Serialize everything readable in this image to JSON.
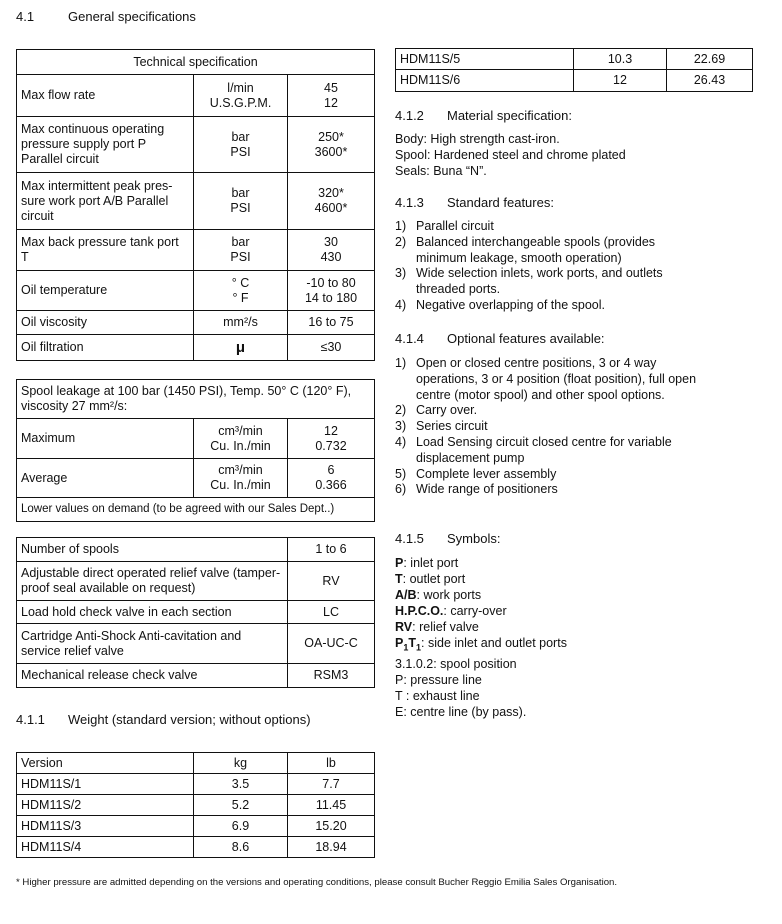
{
  "section": {
    "number": "4.1",
    "title": "General specifications"
  },
  "tech_spec": {
    "header": "Technical specification",
    "rows": [
      {
        "label": "Max flow rate",
        "unit1": "l/min",
        "unit2": "U.S.G.P.M.",
        "val1": "45",
        "val2": "12"
      },
      {
        "label": "Max continuous operating pressure supply port P Parallel circuit",
        "unit1": "bar",
        "unit2": "PSI",
        "val1": "250*",
        "val2": "3600*"
      },
      {
        "label": "Max intermittent peak pres-sure work port A/B Parallel circuit",
        "unit1": "bar",
        "unit2": "PSI",
        "val1": "320*",
        "val2": "4600*"
      },
      {
        "label": "Max back pressure tank port T",
        "unit1": "bar",
        "unit2": "PSI",
        "val1": "30",
        "val2": "430"
      },
      {
        "label": "Oil temperature",
        "unit1": "° C",
        "unit2": "° F",
        "val1": "-10 to 80",
        "val2": "14 to 180"
      },
      {
        "label": "Oil viscosity",
        "unit1": "mm²/s",
        "val1": "16 to 75"
      },
      {
        "label": "Oil filtration",
        "unit1": "μ",
        "val1": "≤30"
      }
    ]
  },
  "leakage": {
    "header": "Spool leakage at 100 bar (1450 PSI), Temp. 50° C (120° F), viscosity 27 mm²/s:",
    "rows": [
      {
        "label": "Maximum",
        "unit1": "cm³/min",
        "unit2": "Cu. In./min",
        "val1": "12",
        "val2": "0.732"
      },
      {
        "label": "Average",
        "unit1": "cm³/min",
        "unit2": "Cu. In./min",
        "val1": "6",
        "val2": "0.366"
      }
    ],
    "footer": "Lower values on demand (to be agreed with our Sales Dept..)"
  },
  "options_table": [
    {
      "label": "Number of spools",
      "code": "1 to 6"
    },
    {
      "label": "Adjustable direct operated relief valve (tamper-proof seal available on request)",
      "code": "RV"
    },
    {
      "label": "Load hold check valve in each section",
      "code": "LC"
    },
    {
      "label": "Cartridge Anti-Shock Anti-cavitation and service relief valve",
      "code": "OA-UC-C"
    },
    {
      "label": "Mechanical release check valve",
      "code": "RSM3"
    }
  ],
  "weight": {
    "number": "4.1.1",
    "title": "Weight (standard version; without options)",
    "headers": [
      "Version",
      "kg",
      "lb"
    ],
    "rows": [
      [
        "HDM11S/1",
        "3.5",
        "7.7"
      ],
      [
        "HDM11S/2",
        "5.2",
        "11.45"
      ],
      [
        "HDM11S/3",
        "6.9",
        "15.20"
      ],
      [
        "HDM11S/4",
        "8.6",
        "18.94"
      ],
      [
        "HDM11S/5",
        "10.3",
        "22.69"
      ],
      [
        "HDM11S/6",
        "12",
        "26.43"
      ]
    ]
  },
  "material": {
    "number": "4.1.2",
    "title": "Material specification:",
    "lines": [
      "Body: High strength cast-iron.",
      "Spool: Hardened steel and chrome plated",
      "Seals: Buna “N”."
    ]
  },
  "standard": {
    "number": "4.1.3",
    "title": "Standard features:",
    "items": [
      {
        "n": "1)",
        "t": "Parallel circuit"
      },
      {
        "n": "2)",
        "t": "Balanced interchangeable spools (provides minimum leakage, smooth operation)"
      },
      {
        "n": "3)",
        "t": "Wide selection inlets, work ports, and outlets threaded ports."
      },
      {
        "n": "4)",
        "t": "Negative overlapping of the spool."
      }
    ]
  },
  "optional": {
    "number": "4.1.4",
    "title": "Optional features available:",
    "items": [
      {
        "n": "1)",
        "t": "Open or closed centre positions, 3 or 4 way operations, 3 or 4 position (float position), full open centre (motor spool) and other spool options."
      },
      {
        "n": "2)",
        "t": "Carry over."
      },
      {
        "n": "3)",
        "t": "Series circuit"
      },
      {
        "n": "4)",
        "t": "Load Sensing circuit closed centre for variable displacement pump"
      },
      {
        "n": "5)",
        "t": "Complete lever assembly"
      },
      {
        "n": "6)",
        "t": "Wide range of positioners"
      }
    ]
  },
  "symbols": {
    "number": "4.1.5",
    "title": "Symbols:",
    "items": [
      {
        "k": "P",
        "t": ": inlet port"
      },
      {
        "k": "T",
        "t": ": outlet port"
      },
      {
        "k": "A/B",
        "t": ": work ports"
      },
      {
        "k": "H.P.C.O.",
        "t": ": carry-over"
      },
      {
        "k": "RV",
        "t": ": relief valve"
      },
      {
        "k": "P1T1",
        "t": ": side inlet and outlet ports"
      },
      {
        "k": "",
        "t": "3.1.0.2: spool position"
      },
      {
        "k": "",
        "t": "P: pressure line"
      },
      {
        "k": "",
        "t": "T : exhaust line"
      },
      {
        "k": "",
        "t": "E: centre line (by pass)."
      }
    ]
  },
  "footnote": "* Higher pressure are admitted depending on the versions and operating conditions, please consult Bucher Reggio Emilia Sales Organisation."
}
